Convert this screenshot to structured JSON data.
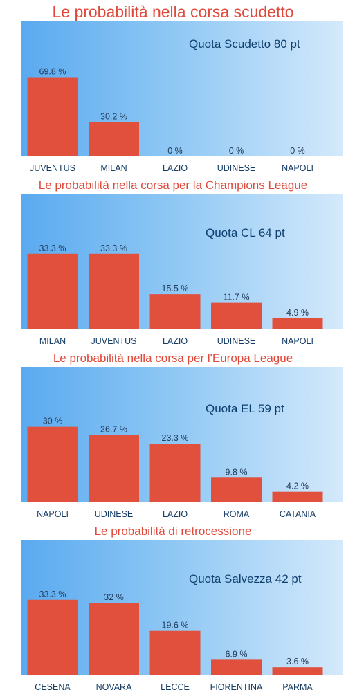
{
  "colors": {
    "title": "#e0483a",
    "bar": "#e0503c",
    "panel_start": "#5aaaf0",
    "panel_end": "#d4e9fb",
    "label": "#163d66"
  },
  "chart_data": [
    {
      "type": "bar",
      "title": "Le probabilità nella corsa scudetto",
      "annotation": "Quota Scudetto 80 pt",
      "categories": [
        "JUVENTUS",
        "MILAN",
        "LAZIO",
        "UDINESE",
        "NAPOLI"
      ],
      "values": [
        69.8,
        30.2,
        0,
        0,
        0
      ],
      "value_labels": [
        "69.8 %",
        "30.2 %",
        "0 %",
        "0 %",
        "0 %"
      ],
      "ylim": [
        0,
        100
      ],
      "grid": false
    },
    {
      "type": "bar",
      "title": "Le probabilità nella corsa per la Champions League",
      "annotation": "Quota CL 64 pt",
      "categories": [
        "MILAN",
        "JUVENTUS",
        "LAZIO",
        "UDINESE",
        "NAPOLI"
      ],
      "values": [
        33.3,
        33.3,
        15.5,
        11.7,
        4.9
      ],
      "value_labels": [
        "33.3 %",
        "33.3 %",
        "15.5 %",
        "11.7 %",
        "4.9 %"
      ],
      "ylim": [
        0,
        50
      ],
      "grid": false
    },
    {
      "type": "bar",
      "title": "Le probabilità nella corsa per l'Europa League",
      "annotation": "Quota EL 59 pt",
      "categories": [
        "NAPOLI",
        "UDINESE",
        "LAZIO",
        "ROMA",
        "CATANIA"
      ],
      "values": [
        30,
        26.7,
        23.3,
        9.8,
        4.2
      ],
      "value_labels": [
        "30 %",
        "26.7 %",
        "23.3 %",
        "9.8 %",
        "4.2 %"
      ],
      "ylim": [
        0,
        45
      ],
      "grid": false
    },
    {
      "type": "bar",
      "title": "Le probabilità di retrocessione",
      "annotation": "Quota Salvezza 42 pt",
      "categories": [
        "CESENA",
        "NOVARA",
        "LECCE",
        "FIORENTINA",
        "PARMA"
      ],
      "values": [
        33.3,
        32,
        19.6,
        6.9,
        3.6
      ],
      "value_labels": [
        "33.3 %",
        "32 %",
        "19.6 %",
        "6.9 %",
        "3.6 %"
      ],
      "ylim": [
        0,
        50
      ],
      "grid": false
    }
  ]
}
